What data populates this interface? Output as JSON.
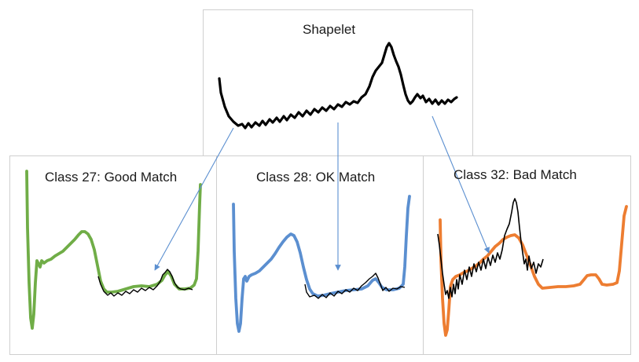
{
  "shapelet": {
    "title": "Shapelet",
    "color": "#000000"
  },
  "panels": [
    {
      "id": "class-27",
      "title": "Class 27: Good Match",
      "series_color": "#70ad47",
      "match": "good"
    },
    {
      "id": "class-28",
      "title": "Class 28: OK Match",
      "series_color": "#5b8fd0",
      "match": "ok"
    },
    {
      "id": "class-32",
      "title": "Class 32: Bad Match",
      "series_color": "#ed7d31",
      "match": "bad"
    }
  ],
  "colors": {
    "arrow": "#5b8fd0",
    "overlay_line": "#000000",
    "border": "#cfcfcf"
  }
}
